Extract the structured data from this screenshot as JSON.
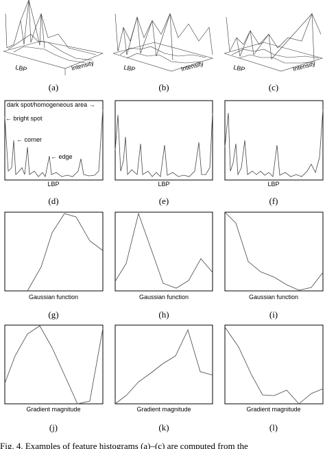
{
  "panels": [
    {
      "label": "(a)",
      "axis_labels": [
        "LBP",
        "Intensity"
      ]
    },
    {
      "label": "(b)",
      "axis_labels": [
        "LBP",
        "Intensity"
      ]
    },
    {
      "label": "(c)",
      "axis_labels": [
        "LBP",
        "Intensity"
      ]
    },
    {
      "label": "(d)",
      "axis_label": "LBP"
    },
    {
      "label": "(e)",
      "axis_label": "LBP"
    },
    {
      "label": "(f)",
      "axis_label": "LBP"
    },
    {
      "label": "(g)",
      "axis_label": "Gaussian function"
    },
    {
      "label": "(h)",
      "axis_label": "Gaussian function"
    },
    {
      "label": "(i)",
      "axis_label": "Gaussian function"
    },
    {
      "label": "(j)",
      "axis_label": "Gradient magnitude"
    },
    {
      "label": "(k)",
      "axis_label": "Gradient magnitude"
    },
    {
      "label": "(l)",
      "axis_label": "Gradient magnitude"
    }
  ],
  "annotations": [
    "dark spot/homogeneous area →",
    "← bright spot",
    "← corner",
    "← edge"
  ],
  "caption": "Fig. 4.   Examples of feature histograms (a)–(c) are computed from the"
}
